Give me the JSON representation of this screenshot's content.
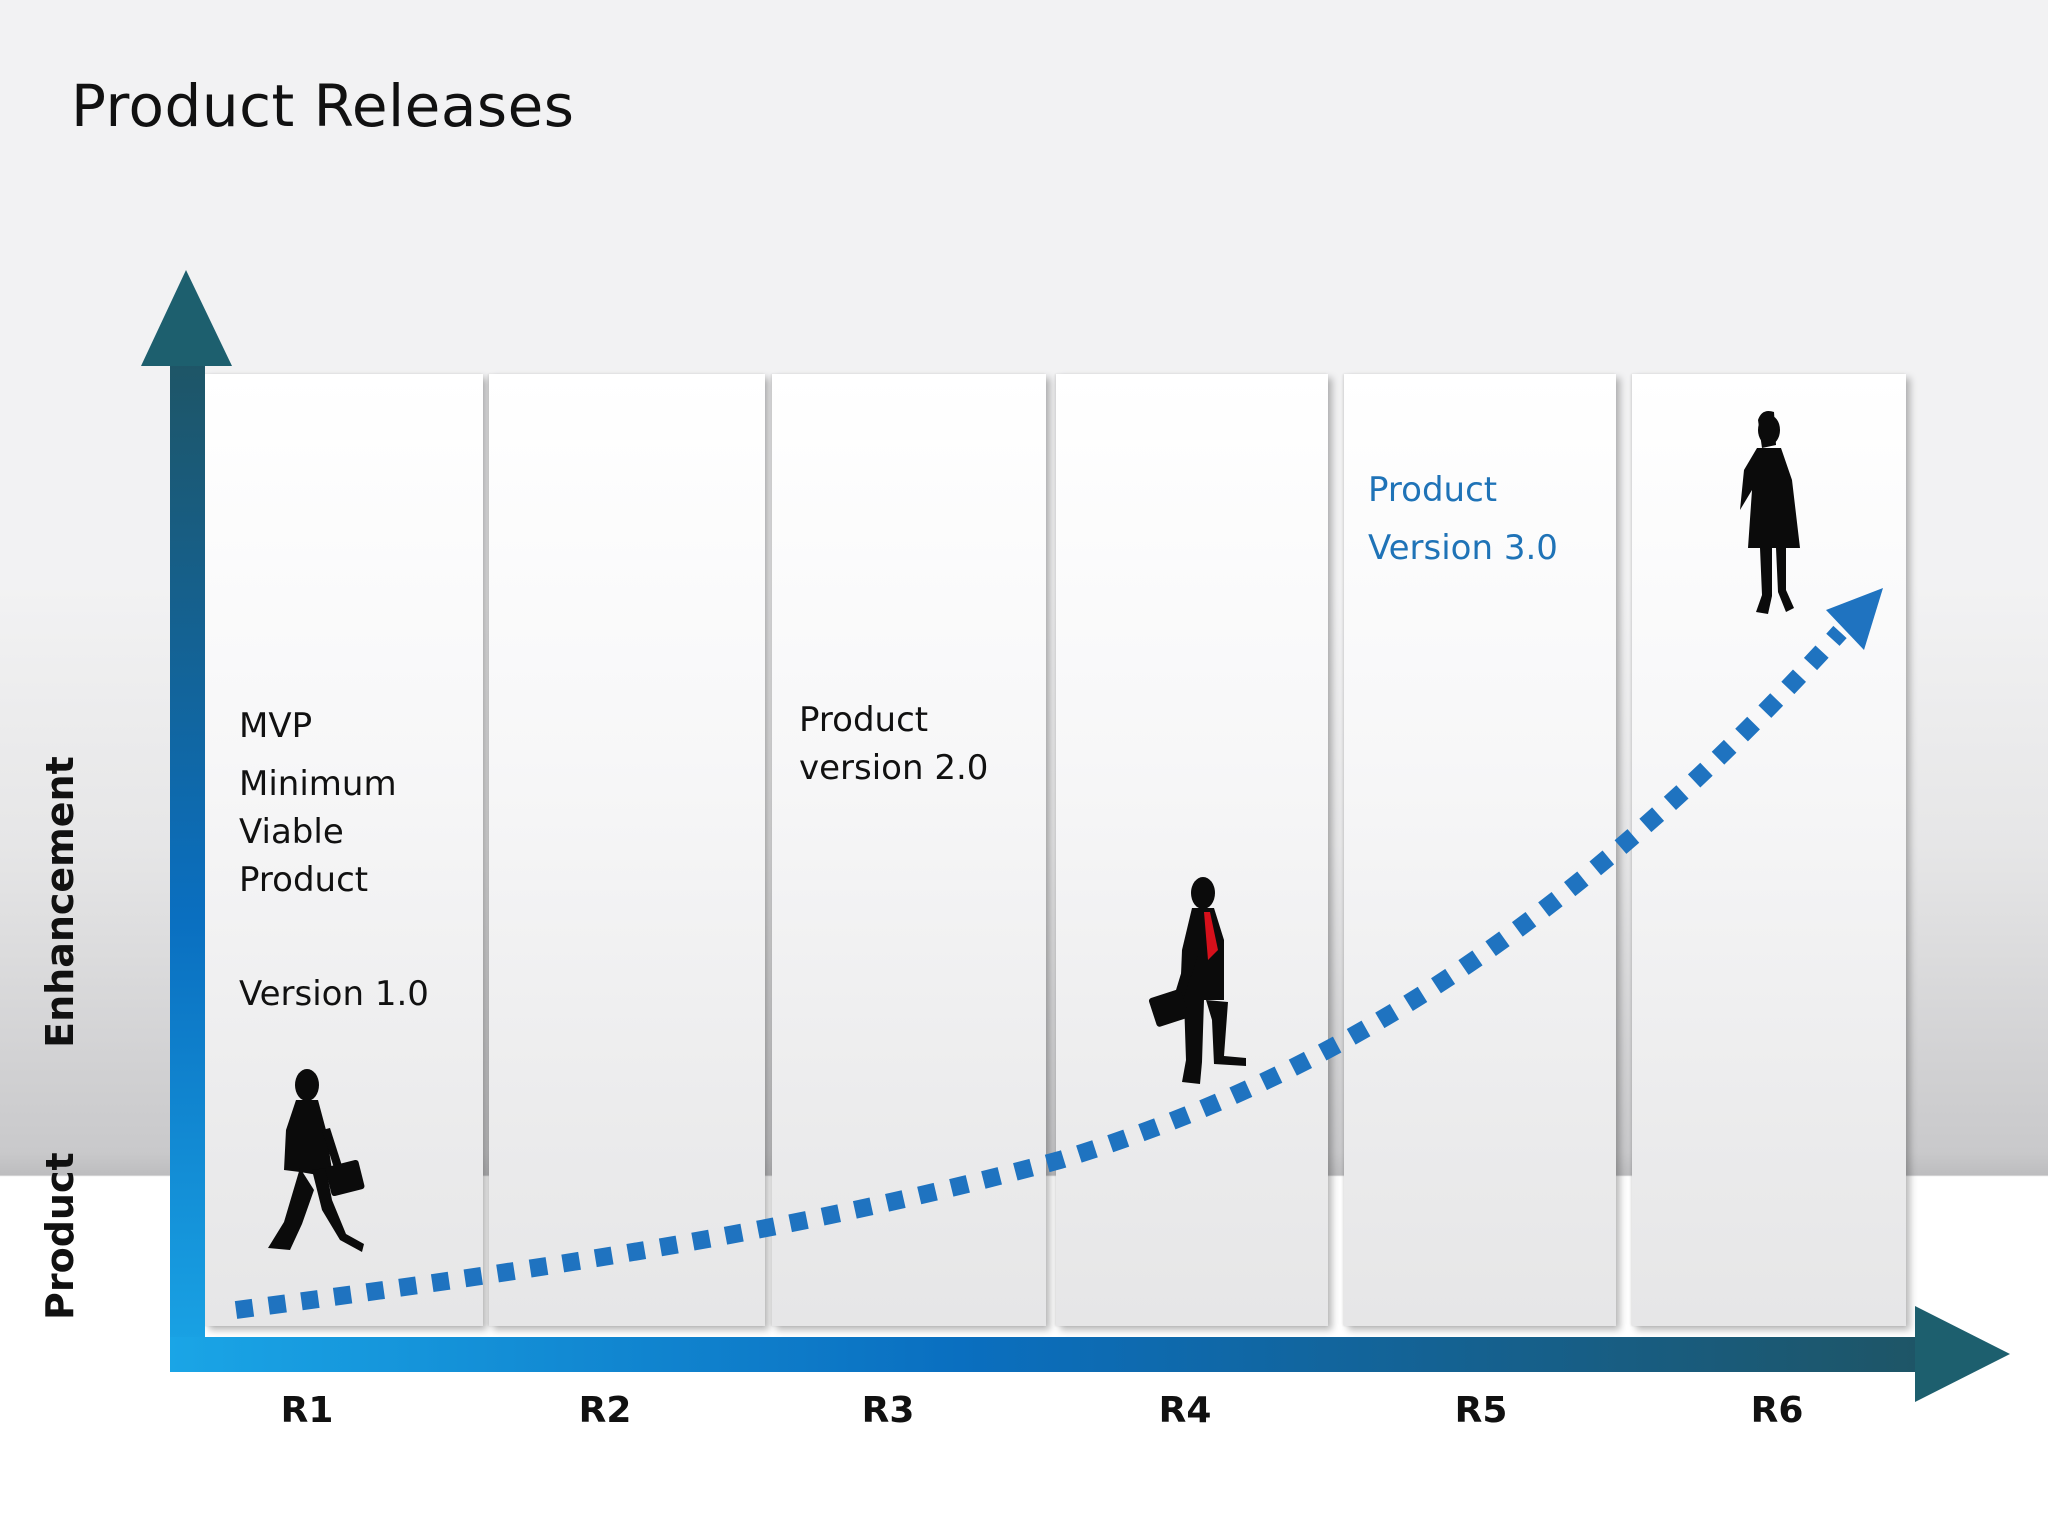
{
  "title": "Product Releases",
  "axes": {
    "y_label_part1": "Product",
    "y_label_part2": "Enhancement",
    "x_labels": [
      "R1",
      "R2",
      "R3",
      "R4",
      "R5",
      "R6"
    ]
  },
  "releases": {
    "r1": {
      "line1": "MVP",
      "line2": "Minimum",
      "line3": "Viable",
      "line4": "Product",
      "line5": "Version 1.0"
    },
    "r3": {
      "line1": "Product",
      "line2": "version 2.0"
    },
    "r5": {
      "line1": "Product",
      "line2": "Version 3.0"
    }
  },
  "figures": [
    "walking-man-with-briefcase",
    "man-climbing-stairs",
    "standing-woman"
  ],
  "colors": {
    "axis_dark": "#1d5f6e",
    "axis_blue": "#0a6fc0",
    "dots": "#1f73c0",
    "tie": "#d6101b"
  }
}
